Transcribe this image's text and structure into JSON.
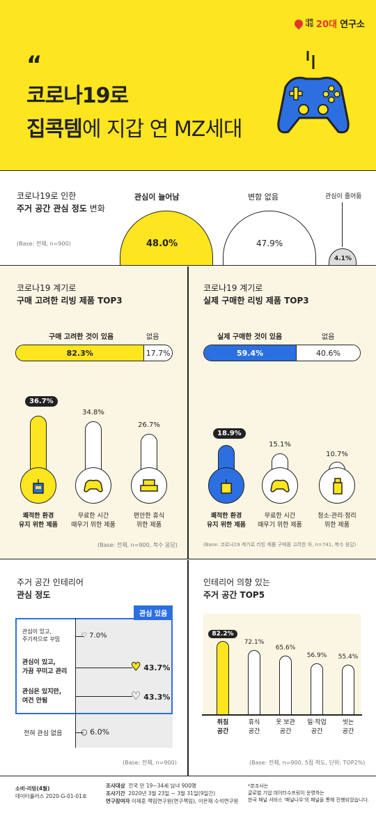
{
  "brand": {
    "line1": "대학",
    "line2": "내일",
    "num": "20대",
    "name": "연구소"
  },
  "header": {
    "quote": "“",
    "title1": "코로나19로",
    "title2_bold": "집콕템",
    "title2_rest": "에 지갑 연 MZ세대"
  },
  "s1": {
    "t1": "코로나19로 인한",
    "t2": "주거 공간 관심 정도",
    "t2b": " 변화",
    "base": "(Base: 전체, n=900)",
    "items": [
      {
        "label": "관심이 늘어남",
        "pct": "48.0%"
      },
      {
        "label": "변함 없음",
        "pct": "47.9%"
      },
      {
        "label": "관심이 줄어듦",
        "pct": "4.1%"
      }
    ]
  },
  "s2l": {
    "t1": "코로나19 계기로",
    "t2": "구매 고려한 리빙 제품 TOP3",
    "bar_l": "구매 고려한 것이 있음",
    "bar_r": "없음",
    "v1": "82.3%",
    "v2": "17.7%",
    "items": [
      {
        "pct": "36.7%",
        "l1": "쾌적한 환경",
        "l2": "유지 위한 제품"
      },
      {
        "pct": "34.8%",
        "l1": "무료한 시간",
        "l2": "때우기 위한 제품"
      },
      {
        "pct": "26.7%",
        "l1": "편안한 휴식",
        "l2": "위한 제품"
      }
    ],
    "base": "(Base: 전체, n=900, 복수 응답)"
  },
  "s2r": {
    "t1": "코로나19 계기로",
    "t2": "실제 구매한 리빙 제품 TOP3",
    "bar_l": "실제 구매한 것이 있음",
    "bar_r": "없음",
    "v1": "59.4%",
    "v2": "40.6%",
    "items": [
      {
        "pct": "18.9%",
        "l1": "쾌적한 환경",
        "l2": "유지 위한 제품"
      },
      {
        "pct": "15.1%",
        "l1": "무료한 시간",
        "l2": "때우기 위한 제품"
      },
      {
        "pct": "10.7%",
        "l1": "청소·관리·정리",
        "l2": "위한 제품"
      }
    ],
    "base": "(Base: 코로나19 계기로 리빙 제품 구매를 고려한 자, n=741, 복수 응답)"
  },
  "s3l": {
    "t1": "주거 공간 인테리어",
    "t2": "관심 정도",
    "tag": "관심 있음",
    "rows": [
      {
        "l1": "관심이 있고,",
        "l2": "주기적으로 꾸밈",
        "pct": "7.0%"
      },
      {
        "l1": "관심이 있고,",
        "l2": "가끔 꾸미고 관리",
        "pct": "43.7%"
      },
      {
        "l1": "관심은 있지만,",
        "l2": "여건 안됨",
        "pct": "43.3%"
      },
      {
        "l1": "전혀 관심 없음",
        "l2": "",
        "pct": "6.0%"
      }
    ],
    "base": "(Base: 전체, n=900)"
  },
  "s3r": {
    "t1": "인테리어 의향 있는",
    "t2": "주거 공간 TOP5",
    "items": [
      {
        "pct": "82.2%",
        "l1": "취침",
        "l2": "공간"
      },
      {
        "pct": "72.1%",
        "l1": "휴식",
        "l2": "공간"
      },
      {
        "pct": "65.6%",
        "l1": "옷 보관",
        "l2": "공간"
      },
      {
        "pct": "56.9%",
        "l1": "일·작업",
        "l2": "공간"
      },
      {
        "pct": "55.4%",
        "l1": "씻는",
        "l2": "공간"
      }
    ],
    "base": "(Base: 전체, n=900, 5점 척도, 단위: TOP2%)"
  },
  "footer": {
    "c1a": "소비·리빙(4월)",
    "c1b": "데이터플러스 2020-G-01-01호",
    "k1": "조사대상",
    "v1": "전국 만 19~34세 남녀 900명",
    "k2": "조사기간",
    "v2": "2020년 3월 23일 ~ 3월 31일(9일간)",
    "k3": "연구참여자",
    "v3": "이재훈 책임연구원(연구책임), 이은재 수석연구원",
    "n1": "*본조사는",
    "n2": "글로벌 기업 데이터수프링이 운영하는",
    "n3": "한국 패널 서비스 '패널나우'의 패널을 통해 진행되었습니다."
  }
}
